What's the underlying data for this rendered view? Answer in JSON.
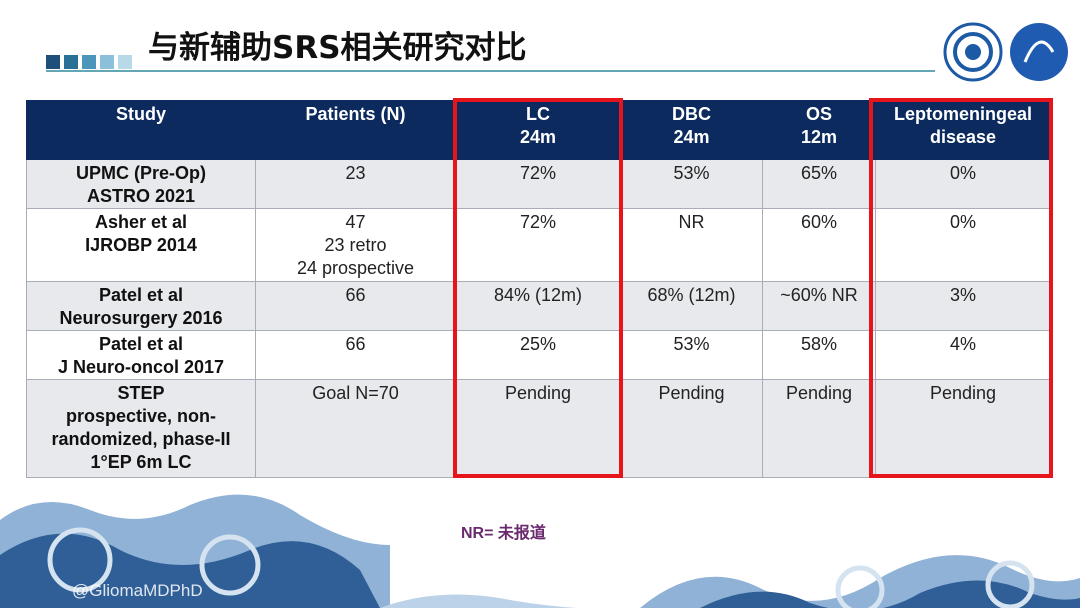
{
  "header": {
    "title": "与新辅助SRS相关研究对比"
  },
  "table": {
    "columns": [
      "Study",
      "Patients (N)",
      "LC\n24m",
      "DBC\n24m",
      "OS\n12m",
      "Leptomeningeal\ndisease"
    ],
    "rows": [
      [
        "UPMC (Pre-Op)\nASTRO 2021",
        "23",
        "72%",
        "53%",
        "65%",
        "0%"
      ],
      [
        "Asher et al\nIJROBP 2014",
        "47\n23 retro\n24 prospective",
        "72%",
        "NR",
        "60%",
        "0%"
      ],
      [
        "Patel et al\nNeurosurgery 2016",
        "66",
        "84% (12m)",
        "68% (12m)",
        "~60% NR",
        "3%"
      ],
      [
        "Patel et al\nJ Neuro-oncol 2017",
        "66",
        "25%",
        "53%",
        "58%",
        "4%"
      ],
      [
        "STEP\nprospective, non-\nrandomized, phase-II\n1°EP 6m LC",
        "Goal N=70",
        "Pending",
        "Pending",
        "Pending",
        "Pending"
      ]
    ]
  },
  "footnote": "NR= 未报道",
  "watermark": "@GliomaMDPhD"
}
